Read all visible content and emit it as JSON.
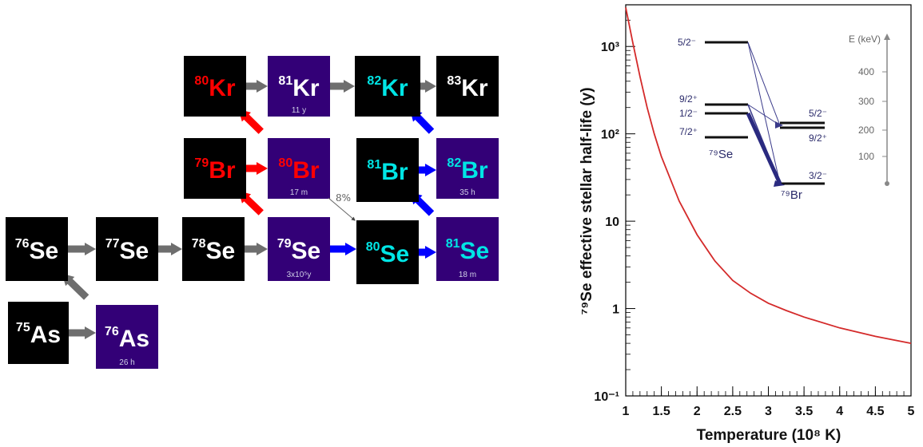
{
  "network": {
    "nuclei": [
      {
        "id": "Kr80",
        "mass": "80",
        "el": "Kr",
        "bg": "#000000",
        "color": "#ff0000",
        "halflife": ""
      },
      {
        "id": "Kr81",
        "mass": "81",
        "el": "Kr",
        "bg": "#330077",
        "color": "#ffffff",
        "halflife": "11 y"
      },
      {
        "id": "Kr82",
        "mass": "82",
        "el": "Kr",
        "bg": "#000000",
        "color": "#00e5e5",
        "halflife": ""
      },
      {
        "id": "Kr83",
        "mass": "83",
        "el": "Kr",
        "bg": "#000000",
        "color": "#ffffff",
        "halflife": ""
      },
      {
        "id": "Br79",
        "mass": "79",
        "el": "Br",
        "bg": "#000000",
        "color": "#ff0000",
        "halflife": ""
      },
      {
        "id": "Br80",
        "mass": "80",
        "el": "Br",
        "bg": "#330077",
        "color": "#ff0000",
        "halflife": "17 m"
      },
      {
        "id": "Br81",
        "mass": "81",
        "el": "Br",
        "bg": "#000000",
        "color": "#00e5e5",
        "halflife": ""
      },
      {
        "id": "Br82",
        "mass": "82",
        "el": "Br",
        "bg": "#330077",
        "color": "#00e5e5",
        "halflife": "35 h"
      },
      {
        "id": "Se76",
        "mass": "76",
        "el": "Se",
        "bg": "#000000",
        "color": "#ffffff",
        "halflife": ""
      },
      {
        "id": "Se77",
        "mass": "77",
        "el": "Se",
        "bg": "#000000",
        "color": "#ffffff",
        "halflife": ""
      },
      {
        "id": "Se78",
        "mass": "78",
        "el": "Se",
        "bg": "#000000",
        "color": "#ffffff",
        "halflife": ""
      },
      {
        "id": "Se79",
        "mass": "79",
        "el": "Se",
        "bg": "#330077",
        "color": "#ffffff",
        "halflife": "3x10⁵y"
      },
      {
        "id": "Se80",
        "mass": "80",
        "el": "Se",
        "bg": "#000000",
        "color": "#00e5e5",
        "halflife": ""
      },
      {
        "id": "Se81",
        "mass": "81",
        "el": "Se",
        "bg": "#330077",
        "color": "#00e5e5",
        "halflife": "18 m"
      },
      {
        "id": "As75",
        "mass": "75",
        "el": "As",
        "bg": "#000000",
        "color": "#ffffff",
        "halflife": ""
      },
      {
        "id": "As76",
        "mass": "76",
        "el": "As",
        "bg": "#330077",
        "color": "#ffffff",
        "halflife": "26 h"
      }
    ],
    "arrows": [
      {
        "from": "As75",
        "to": "As76",
        "color": "#6e6e6e"
      },
      {
        "from": "As76",
        "to": "Se76",
        "color": "#6e6e6e"
      },
      {
        "from": "Se76",
        "to": "Se77",
        "color": "#6e6e6e"
      },
      {
        "from": "Se77",
        "to": "Se78",
        "color": "#6e6e6e"
      },
      {
        "from": "Se78",
        "to": "Se79",
        "color": "#6e6e6e"
      },
      {
        "from": "Se79",
        "to": "Br79",
        "color": "#ff0000"
      },
      {
        "from": "Br79",
        "to": "Br80",
        "color": "#ff0000"
      },
      {
        "from": "Br80",
        "to": "Kr80",
        "color": "#ff0000"
      },
      {
        "from": "Kr80",
        "to": "Kr81",
        "color": "#6e6e6e"
      },
      {
        "from": "Kr81",
        "to": "Kr82",
        "color": "#6e6e6e"
      },
      {
        "from": "Kr82",
        "to": "Kr83",
        "color": "#6e6e6e"
      },
      {
        "from": "Se79",
        "to": "Se80",
        "color": "#0000ff"
      },
      {
        "from": "Se80",
        "to": "Se81",
        "color": "#0000ff"
      },
      {
        "from": "Se81",
        "to": "Br81",
        "color": "#0000ff"
      },
      {
        "from": "Br81",
        "to": "Br82",
        "color": "#0000ff"
      },
      {
        "from": "Br82",
        "to": "Kr82",
        "color": "#0000ff"
      }
    ],
    "branch_label": "8%"
  },
  "chart_data": {
    "type": "line",
    "xlabel": "Temperature (10⁸ K)",
    "ylabel": "⁷⁹Se effective stellar half-life (y)",
    "xlim": [
      1,
      5
    ],
    "ylim": [
      0.1,
      3000
    ],
    "yscale": "log",
    "x_ticks": [
      "1",
      "1.5",
      "2",
      "2.5",
      "3",
      "3.5",
      "4",
      "4.5",
      "5"
    ],
    "y_ticks": [
      "10⁻¹",
      "1",
      "10",
      "10²",
      "10³"
    ],
    "series": [
      {
        "color": "#d42a2a",
        "x": [
          1.0,
          1.1,
          1.2,
          1.3,
          1.4,
          1.5,
          1.75,
          2.0,
          2.25,
          2.5,
          2.75,
          3.0,
          3.25,
          3.5,
          4.0,
          4.5,
          5.0
        ],
        "y": [
          2800,
          1100,
          450,
          200,
          100,
          55,
          17,
          7,
          3.5,
          2.1,
          1.5,
          1.15,
          0.95,
          0.8,
          0.6,
          0.48,
          0.4
        ]
      }
    ],
    "inset": {
      "levels_se": [
        "5/2⁻",
        "9/2⁺",
        "1/2⁻",
        "7/2⁺"
      ],
      "levels_br": [
        "5/2⁻",
        "9/2⁺",
        "3/2⁻"
      ],
      "se_label": "⁷⁹Se",
      "br_label": "⁷⁹Br",
      "energy_axis_label": "E (keV)",
      "energy_ticks": [
        "400",
        "300",
        "200",
        "100"
      ]
    }
  }
}
